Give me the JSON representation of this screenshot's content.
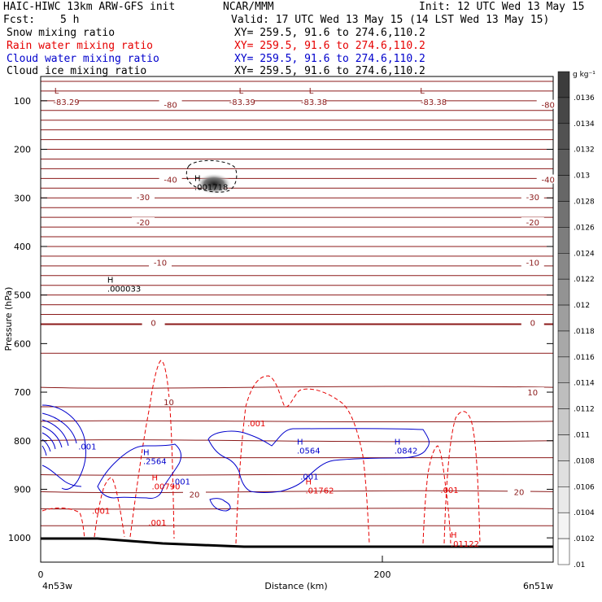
{
  "header": {
    "model": "HAIC-HIWC 13km ARW-GFS init",
    "center": "NCAR/MMM",
    "init": "Init: 12 UTC Wed 13 May 15",
    "fcst_label": "Fcst:",
    "fcst_value": "5 h",
    "valid": "Valid: 17 UTC Wed 13 May 15 (14 LST Wed 13 May 15)"
  },
  "fields": [
    {
      "name": "Snow mixing ratio",
      "xy": "XY= 259.5, 91.6 to 274.6,110.2",
      "color": "#000000"
    },
    {
      "name": "Rain water mixing ratio",
      "xy": "XY= 259.5, 91.6 to 274.6,110.2",
      "color": "#e60000"
    },
    {
      "name": "Cloud water mixing ratio",
      "xy": "XY= 259.5, 91.6 to 274.6,110.2",
      "color": "#0000cc"
    },
    {
      "name": "Cloud ice mixing ratio",
      "xy": "XY= 259.5, 91.6 to 274.6,110.2",
      "color": "#000000"
    }
  ],
  "chart_data": {
    "type": "cross-section contour",
    "ylabel": "Pressure (hPa)",
    "xlabel": "Distance (km)",
    "x_start_label": "4n53w",
    "x_end_label": "6n51w",
    "xlim": [
      0,
      300
    ],
    "ylim_hpa": [
      1050,
      50
    ],
    "x_ticks": [
      0,
      200
    ],
    "y_ticks": [
      100,
      200,
      300,
      400,
      500,
      600,
      700,
      800,
      900,
      1000
    ],
    "colorbar": {
      "unit": "g kg⁻¹",
      "ticks": [
        ".0136",
        ".0134",
        ".0132",
        ".013",
        ".0128",
        ".0126",
        ".0124",
        ".0122",
        ".012",
        ".0118",
        ".0116",
        ".0114",
        ".0112",
        ".011",
        ".0108",
        ".0106",
        ".0104",
        ".0102",
        ".01"
      ]
    },
    "temperature_labels": [
      {
        "label": "-80",
        "x": 76,
        "p": 108
      },
      {
        "label": "-80",
        "x": 297,
        "p": 108
      },
      {
        "label": "-83.29",
        "x": 15,
        "p": 102
      },
      {
        "label": "-83.39",
        "x": 118,
        "p": 102
      },
      {
        "label": "-83.38",
        "x": 160,
        "p": 102
      },
      {
        "label": "-83.38",
        "x": 230,
        "p": 102
      },
      {
        "label": "-40",
        "x": 76,
        "p": 262
      },
      {
        "label": "-40",
        "x": 297,
        "p": 262
      },
      {
        "label": "-30",
        "x": 60,
        "p": 298
      },
      {
        "label": "-30",
        "x": 288,
        "p": 298
      },
      {
        "label": "-20",
        "x": 60,
        "p": 350
      },
      {
        "label": "-20",
        "x": 288,
        "p": 350
      },
      {
        "label": "-10",
        "x": 70,
        "p": 433
      },
      {
        "label": "-10",
        "x": 288,
        "p": 433
      },
      {
        "label": "0",
        "x": 66,
        "p": 557
      },
      {
        "label": "0",
        "x": 288,
        "p": 557
      },
      {
        "label": "10",
        "x": 75,
        "p": 720
      },
      {
        "label": "10",
        "x": 288,
        "p": 700
      },
      {
        "label": "20",
        "x": 90,
        "p": 910
      },
      {
        "label": "20",
        "x": 280,
        "p": 905
      }
    ],
    "extrema_labels": [
      {
        "mark": "L",
        "x": 8,
        "p": 85
      },
      {
        "mark": "L",
        "x": 116,
        "p": 85
      },
      {
        "mark": "L",
        "x": 157,
        "p": 85
      },
      {
        "mark": "L",
        "x": 222,
        "p": 85
      },
      {
        "mark": "H",
        "value": ".001718",
        "x": 90,
        "p": 265,
        "color": "#000000"
      },
      {
        "mark": "H",
        "value": ".000033",
        "x": 39,
        "p": 475,
        "color": "#000000"
      },
      {
        "mark": "H",
        "value": ".2564",
        "x": 60,
        "p": 830,
        "color": "#0000cc"
      },
      {
        "mark": "H",
        "value": ".0564",
        "x": 150,
        "p": 808,
        "color": "#0000cc"
      },
      {
        "mark": "H",
        "value": ".0842",
        "x": 207,
        "p": 808,
        "color": "#0000cc"
      },
      {
        "mark": "H",
        "value": ".00790",
        "x": 65,
        "p": 882,
        "color": "#e60000"
      },
      {
        "mark": "H",
        "value": ".01762",
        "x": 155,
        "p": 890,
        "color": "#e60000"
      },
      {
        "mark": "H",
        "value": ".01122",
        "x": 240,
        "p": 1000,
        "color": "#e60000"
      }
    ],
    "contour_labels": [
      {
        "text": ".001",
        "x": 22,
        "p": 818,
        "color": "#0000cc"
      },
      {
        "text": ".001",
        "x": 77,
        "p": 890,
        "color": "#0000cc"
      },
      {
        "text": ".001",
        "x": 152,
        "p": 880,
        "color": "#0000cc"
      },
      {
        "text": ".001",
        "x": 121,
        "p": 770,
        "color": "#e60000"
      },
      {
        "text": ".001",
        "x": 30,
        "p": 950,
        "color": "#e60000"
      },
      {
        "text": ".001",
        "x": 63,
        "p": 975,
        "color": "#e60000"
      },
      {
        "text": ".001",
        "x": 234,
        "p": 908,
        "color": "#e60000"
      }
    ]
  }
}
